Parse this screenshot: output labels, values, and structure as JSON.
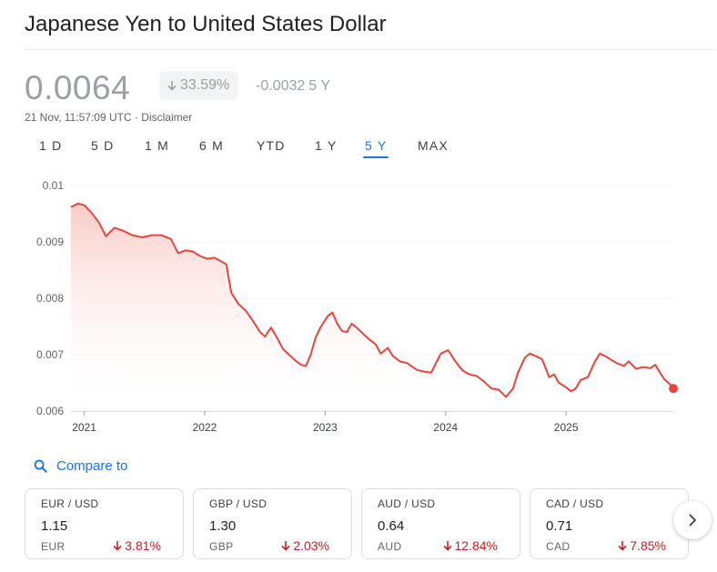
{
  "header": {
    "title": "Japanese Yen to United States Dollar"
  },
  "quote": {
    "price": "0.0064",
    "percent_change": "33.59%",
    "absolute_change": "-0.0032",
    "period_label": "5 Y",
    "timestamp": "21 Nov, 11:57:09 UTC",
    "separator": " · ",
    "disclaimer": "Disclaimer"
  },
  "tabs": [
    {
      "label": "1 D"
    },
    {
      "label": "5 D"
    },
    {
      "label": "1 M"
    },
    {
      "label": "6 M"
    },
    {
      "label": "YTD"
    },
    {
      "label": "1 Y"
    },
    {
      "label": "5 Y",
      "active": true
    },
    {
      "label": "MAX"
    }
  ],
  "chart_data": {
    "type": "area",
    "y_ticks": [
      "0.01",
      "0.009",
      "0.008",
      "0.007",
      "0.006"
    ],
    "x_ticks": [
      "2021",
      "2022",
      "2023",
      "2024",
      "2025"
    ],
    "ylim": [
      0.006,
      0.01
    ],
    "xlim": [
      2020.89,
      2025.89
    ],
    "grid": true,
    "line_color": "#e8453c",
    "fill_color": "#f8c9c4",
    "series": [
      {
        "values": [
          [
            2020.89,
            0.00962
          ],
          [
            2020.95,
            0.00968
          ],
          [
            2021.0,
            0.00965
          ],
          [
            2021.06,
            0.00952
          ],
          [
            2021.12,
            0.00935
          ],
          [
            2021.18,
            0.0091
          ],
          [
            2021.25,
            0.00925
          ],
          [
            2021.32,
            0.0092
          ],
          [
            2021.4,
            0.00912
          ],
          [
            2021.48,
            0.00908
          ],
          [
            2021.56,
            0.00912
          ],
          [
            2021.64,
            0.00912
          ],
          [
            2021.72,
            0.00905
          ],
          [
            2021.78,
            0.0088
          ],
          [
            2021.84,
            0.00885
          ],
          [
            2021.9,
            0.00883
          ],
          [
            2021.96,
            0.00875
          ],
          [
            2022.02,
            0.0087
          ],
          [
            2022.08,
            0.00872
          ],
          [
            2022.14,
            0.00865
          ],
          [
            2022.18,
            0.0086
          ],
          [
            2022.22,
            0.0081
          ],
          [
            2022.28,
            0.0079
          ],
          [
            2022.34,
            0.00778
          ],
          [
            2022.4,
            0.0076
          ],
          [
            2022.46,
            0.0074
          ],
          [
            2022.5,
            0.00732
          ],
          [
            2022.55,
            0.00748
          ],
          [
            2022.6,
            0.0073
          ],
          [
            2022.65,
            0.0071
          ],
          [
            2022.7,
            0.007
          ],
          [
            2022.75,
            0.0069
          ],
          [
            2022.8,
            0.00682
          ],
          [
            2022.84,
            0.0068
          ],
          [
            2022.88,
            0.007
          ],
          [
            2022.92,
            0.0073
          ],
          [
            2022.96,
            0.00748
          ],
          [
            2023.02,
            0.00768
          ],
          [
            2023.06,
            0.00775
          ],
          [
            2023.1,
            0.00755
          ],
          [
            2023.14,
            0.00742
          ],
          [
            2023.18,
            0.0074
          ],
          [
            2023.22,
            0.00755
          ],
          [
            2023.26,
            0.00748
          ],
          [
            2023.3,
            0.0074
          ],
          [
            2023.36,
            0.00728
          ],
          [
            2023.42,
            0.00718
          ],
          [
            2023.46,
            0.00702
          ],
          [
            2023.52,
            0.00712
          ],
          [
            2023.56,
            0.00698
          ],
          [
            2023.62,
            0.00688
          ],
          [
            2023.68,
            0.00685
          ],
          [
            2023.76,
            0.00673
          ],
          [
            2023.82,
            0.0067
          ],
          [
            2023.88,
            0.00668
          ],
          [
            2023.92,
            0.00685
          ],
          [
            2023.96,
            0.00702
          ],
          [
            2024.02,
            0.00708
          ],
          [
            2024.08,
            0.00688
          ],
          [
            2024.14,
            0.00672
          ],
          [
            2024.2,
            0.00665
          ],
          [
            2024.26,
            0.00662
          ],
          [
            2024.32,
            0.00652
          ],
          [
            2024.38,
            0.0064
          ],
          [
            2024.44,
            0.00638
          ],
          [
            2024.5,
            0.00625
          ],
          [
            2024.56,
            0.0064
          ],
          [
            2024.6,
            0.00668
          ],
          [
            2024.66,
            0.00695
          ],
          [
            2024.7,
            0.00702
          ],
          [
            2024.74,
            0.00698
          ],
          [
            2024.8,
            0.00692
          ],
          [
            2024.86,
            0.0066
          ],
          [
            2024.9,
            0.00665
          ],
          [
            2024.94,
            0.0065
          ],
          [
            2025.0,
            0.00642
          ],
          [
            2025.04,
            0.00635
          ],
          [
            2025.08,
            0.0064
          ],
          [
            2025.12,
            0.00655
          ],
          [
            2025.18,
            0.0066
          ],
          [
            2025.24,
            0.00688
          ],
          [
            2025.28,
            0.00702
          ],
          [
            2025.32,
            0.00698
          ],
          [
            2025.38,
            0.0069
          ],
          [
            2025.42,
            0.00685
          ],
          [
            2025.48,
            0.0068
          ],
          [
            2025.52,
            0.00688
          ],
          [
            2025.58,
            0.00675
          ],
          [
            2025.64,
            0.00678
          ],
          [
            2025.7,
            0.00676
          ],
          [
            2025.74,
            0.00682
          ],
          [
            2025.78,
            0.00668
          ],
          [
            2025.82,
            0.00655
          ],
          [
            2025.86,
            0.00648
          ],
          [
            2025.89,
            0.0064
          ]
        ]
      }
    ]
  },
  "compare": {
    "label": "Compare to"
  },
  "cards": [
    {
      "pair": "EUR / USD",
      "value": "1.15",
      "currency": "EUR",
      "change": "3.81%"
    },
    {
      "pair": "GBP / USD",
      "value": "1.30",
      "currency": "GBP",
      "change": "2.03%"
    },
    {
      "pair": "AUD / USD",
      "value": "0.64",
      "currency": "AUD",
      "change": "12.84%"
    },
    {
      "pair": "CAD / USD",
      "value": "0.71",
      "currency": "CAD",
      "change": "7.85%"
    }
  ],
  "colors": {
    "accent": "#1a73e8",
    "negative": "#c5221f",
    "line": "#e8453c"
  },
  "icons": {
    "search": "search-icon",
    "down_arrow": "arrow-down-icon",
    "next": "chevron-right-icon"
  }
}
